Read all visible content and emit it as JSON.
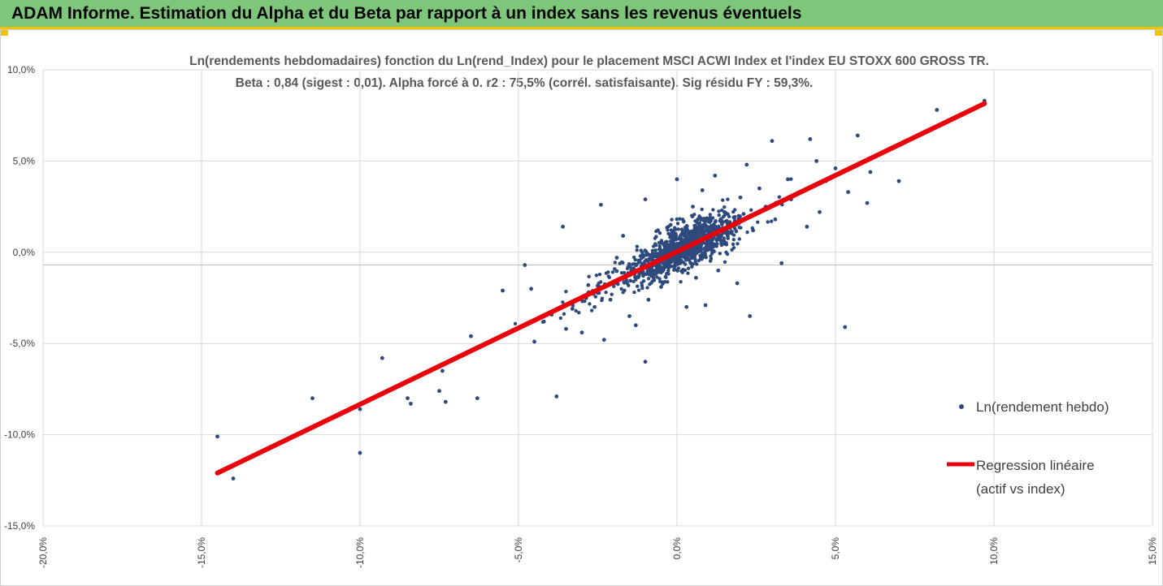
{
  "header": {
    "title": "ADAM Informe. Estimation du Alpha et du Beta par rapport à un index sans les revenus éventuels"
  },
  "chart_data": {
    "type": "scatter",
    "title": "Ln(rendements hebdomadaires) fonction du Ln(rend_Index) pour le placement MSCI ACWI Index et l'index EU STOXX 600 GROSS TR.",
    "subtitle": "Beta : 0,84 (sigest : 0,01). Alpha forcé à 0. r2 : 75,5% (corrél. satisfaisante). Sig résidu FY : 59,3%.",
    "xlabel": "",
    "ylabel": "",
    "xlim": [
      -20,
      15
    ],
    "ylim": [
      -15,
      10
    ],
    "x_ticks": [
      "-20,0%",
      "-15,0%",
      "-10,0%",
      "-5,0%",
      "0,0%",
      "5,0%",
      "10,0%",
      "15,0%"
    ],
    "y_ticks": [
      "10,0%",
      "5,0%",
      "0,0%",
      "-5,0%",
      "-10,0%",
      "-15,0%"
    ],
    "grid": true,
    "legend_position": "right",
    "legend": [
      "Ln(rendement hebdo)",
      "Regression linéaire",
      "(actif vs index)"
    ],
    "colors": {
      "points": "#2e4a7d",
      "regression": "#e8000b",
      "grid": "#d9d9d9"
    },
    "regression": {
      "beta": 0.84,
      "alpha": 0,
      "x": [
        -14.5,
        9.7
      ],
      "y": [
        -12.1,
        8.15
      ]
    },
    "series": [
      {
        "name": "Ln(rendement hebdo)",
        "points": [
          [
            -14.5,
            -10.1
          ],
          [
            -14.0,
            -12.4
          ],
          [
            -11.5,
            -8.0
          ],
          [
            -10.0,
            -8.6
          ],
          [
            -10.0,
            -11.0
          ],
          [
            -9.3,
            -5.8
          ],
          [
            -8.5,
            -8.0
          ],
          [
            -8.4,
            -8.3
          ],
          [
            -7.5,
            -7.6
          ],
          [
            -7.4,
            -6.5
          ],
          [
            -7.3,
            -8.2
          ],
          [
            -6.3,
            -8.0
          ],
          [
            -6.5,
            -4.6
          ],
          [
            -5.5,
            -2.1
          ],
          [
            -5.3,
            -4.4
          ],
          [
            -4.8,
            -0.7
          ],
          [
            -4.6,
            -2.0
          ],
          [
            -4.5,
            -4.9
          ],
          [
            -4.2,
            -3.8
          ],
          [
            -3.8,
            -7.9
          ],
          [
            -3.6,
            1.4
          ],
          [
            -3.5,
            -4.2
          ],
          [
            -3.3,
            -3.1
          ],
          [
            -3.0,
            -4.4
          ],
          [
            -2.8,
            -1.8
          ],
          [
            -2.6,
            -3.0
          ],
          [
            -2.4,
            2.6
          ],
          [
            -2.3,
            -4.8
          ],
          [
            -2.1,
            -2.6
          ],
          [
            -2.0,
            -1.6
          ],
          [
            -1.9,
            -0.3
          ],
          [
            -1.7,
            0.9
          ],
          [
            -1.5,
            -3.5
          ],
          [
            -1.3,
            -4.0
          ],
          [
            -1.2,
            -1.3
          ],
          [
            -1.0,
            -6.0
          ],
          [
            -1.0,
            2.9
          ],
          [
            -0.9,
            -2.6
          ],
          [
            -0.8,
            -0.2
          ],
          [
            -0.6,
            1.2
          ],
          [
            -0.5,
            -1.9
          ],
          [
            -0.3,
            -0.8
          ],
          [
            -0.2,
            1.5
          ],
          [
            0.0,
            4.0
          ],
          [
            0.1,
            -0.6
          ],
          [
            0.3,
            0.8
          ],
          [
            0.3,
            -3.0
          ],
          [
            0.5,
            2.5
          ],
          [
            0.6,
            -1.4
          ],
          [
            0.7,
            0.2
          ],
          [
            0.8,
            3.4
          ],
          [
            0.9,
            -2.9
          ],
          [
            1.0,
            1.7
          ],
          [
            1.1,
            0.5
          ],
          [
            1.2,
            4.2
          ],
          [
            1.3,
            -1.0
          ],
          [
            1.5,
            2.2
          ],
          [
            1.6,
            0.9
          ],
          [
            1.8,
            1.6
          ],
          [
            1.9,
            -1.7
          ],
          [
            2.0,
            3.0
          ],
          [
            2.1,
            2.1
          ],
          [
            2.2,
            4.8
          ],
          [
            2.3,
            -3.5
          ],
          [
            2.4,
            1.2
          ],
          [
            2.6,
            3.5
          ],
          [
            2.8,
            2.5
          ],
          [
            3.0,
            6.1
          ],
          [
            3.1,
            1.8
          ],
          [
            3.3,
            -0.6
          ],
          [
            3.5,
            4.0
          ],
          [
            3.6,
            2.9
          ],
          [
            3.9,
            3.3
          ],
          [
            4.1,
            1.4
          ],
          [
            4.2,
            6.2
          ],
          [
            4.4,
            5.0
          ],
          [
            4.5,
            2.2
          ],
          [
            4.7,
            3.9
          ],
          [
            5.0,
            4.6
          ],
          [
            5.3,
            -4.1
          ],
          [
            5.4,
            3.3
          ],
          [
            5.7,
            6.4
          ],
          [
            6.0,
            2.7
          ],
          [
            6.1,
            4.4
          ],
          [
            7.0,
            3.9
          ],
          [
            7.6,
            6.4
          ],
          [
            8.2,
            7.8
          ],
          [
            9.7,
            8.3
          ]
        ]
      },
      {
        "name": "Regression linéaire",
        "points": [
          [
            -14.5,
            -12.1
          ],
          [
            9.7,
            8.15
          ]
        ]
      }
    ]
  }
}
